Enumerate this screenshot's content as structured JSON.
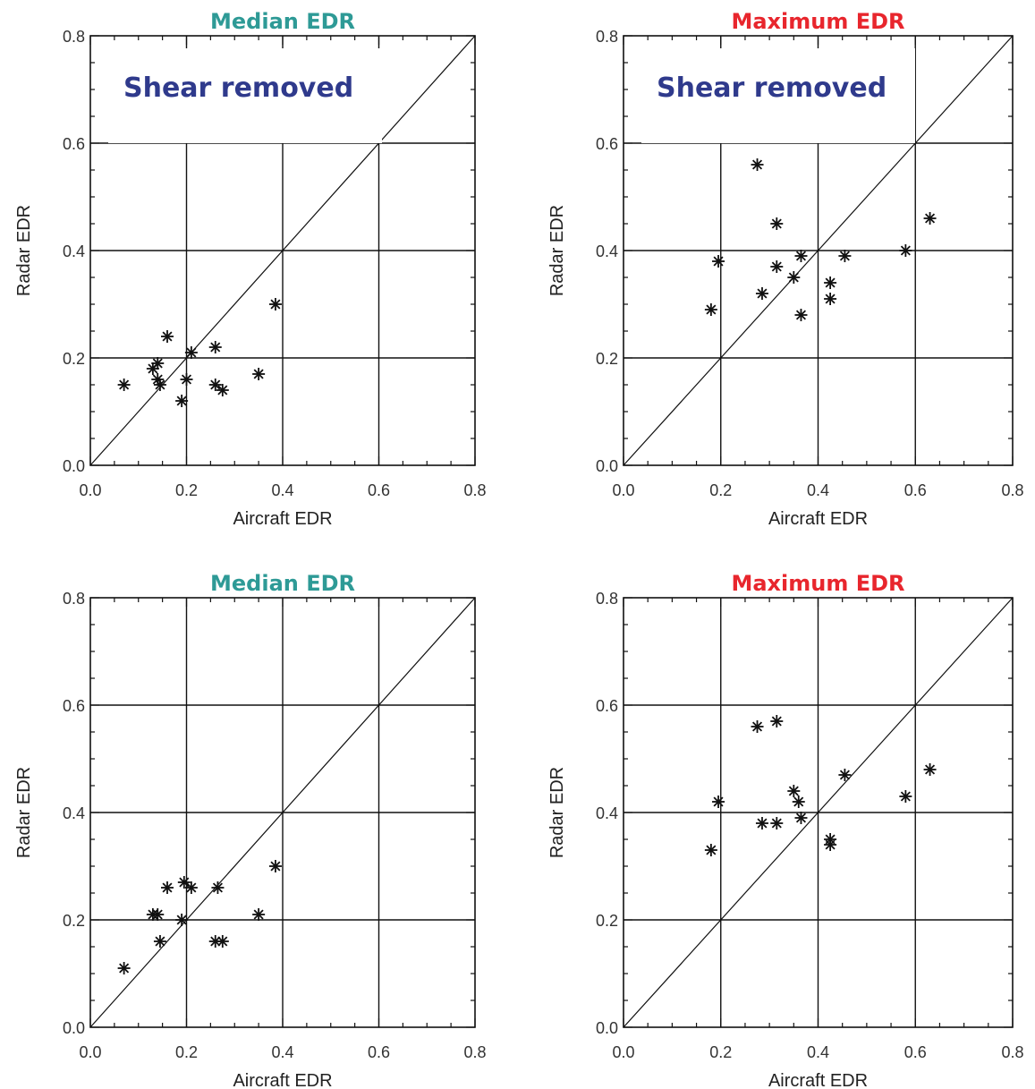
{
  "colors": {
    "median_title": "#2e9a96",
    "maximum_title": "#e8262d",
    "annotation": "#2f3a8c",
    "ink": "#111111"
  },
  "chart_data": [
    {
      "type": "scatter",
      "title": "Median EDR",
      "title_color": "median_title",
      "annotation": "Shear removed",
      "xlabel": "Aircraft EDR",
      "ylabel": "Radar EDR",
      "xlim": [
        0.0,
        0.8
      ],
      "ylim": [
        0.0,
        0.8
      ],
      "xticks": [
        "0.0",
        "0.2",
        "0.4",
        "0.6",
        "0.8"
      ],
      "yticks": [
        "0.0",
        "0.2",
        "0.4",
        "0.6",
        "0.8"
      ],
      "grid": true,
      "reference_line": "y = x",
      "marker": "asterisk",
      "points": [
        {
          "x": 0.07,
          "y": 0.15
        },
        {
          "x": 0.13,
          "y": 0.18
        },
        {
          "x": 0.14,
          "y": 0.19
        },
        {
          "x": 0.14,
          "y": 0.16
        },
        {
          "x": 0.145,
          "y": 0.15
        },
        {
          "x": 0.16,
          "y": 0.24
        },
        {
          "x": 0.19,
          "y": 0.12
        },
        {
          "x": 0.2,
          "y": 0.16
        },
        {
          "x": 0.21,
          "y": 0.21
        },
        {
          "x": 0.26,
          "y": 0.22
        },
        {
          "x": 0.26,
          "y": 0.15
        },
        {
          "x": 0.275,
          "y": 0.14
        },
        {
          "x": 0.35,
          "y": 0.17
        },
        {
          "x": 0.385,
          "y": 0.3
        }
      ]
    },
    {
      "type": "scatter",
      "title": "Maximum EDR",
      "title_color": "maximum_title",
      "annotation": "Shear removed",
      "xlabel": "Aircraft EDR",
      "ylabel": "Radar EDR",
      "xlim": [
        0.0,
        0.8
      ],
      "ylim": [
        0.0,
        0.8
      ],
      "xticks": [
        "0.0",
        "0.2",
        "0.4",
        "0.6",
        "0.8"
      ],
      "yticks": [
        "0.0",
        "0.2",
        "0.4",
        "0.6",
        "0.8"
      ],
      "grid": true,
      "reference_line": "y = x",
      "marker": "asterisk",
      "points": [
        {
          "x": 0.18,
          "y": 0.29
        },
        {
          "x": 0.195,
          "y": 0.38
        },
        {
          "x": 0.275,
          "y": 0.56
        },
        {
          "x": 0.285,
          "y": 0.32
        },
        {
          "x": 0.315,
          "y": 0.45
        },
        {
          "x": 0.315,
          "y": 0.37
        },
        {
          "x": 0.35,
          "y": 0.35
        },
        {
          "x": 0.365,
          "y": 0.39
        },
        {
          "x": 0.365,
          "y": 0.28
        },
        {
          "x": 0.425,
          "y": 0.34
        },
        {
          "x": 0.425,
          "y": 0.31
        },
        {
          "x": 0.455,
          "y": 0.39
        },
        {
          "x": 0.58,
          "y": 0.4
        },
        {
          "x": 0.63,
          "y": 0.46
        }
      ]
    },
    {
      "type": "scatter",
      "title": "Median EDR",
      "title_color": "median_title",
      "annotation": "",
      "xlabel": "Aircraft EDR",
      "ylabel": "Radar EDR",
      "xlim": [
        0.0,
        0.8
      ],
      "ylim": [
        0.0,
        0.8
      ],
      "xticks": [
        "0.0",
        "0.2",
        "0.4",
        "0.6",
        "0.8"
      ],
      "yticks": [
        "0.0",
        "0.2",
        "0.4",
        "0.6",
        "0.8"
      ],
      "grid": true,
      "reference_line": "y = x",
      "marker": "asterisk",
      "points": [
        {
          "x": 0.07,
          "y": 0.11
        },
        {
          "x": 0.13,
          "y": 0.21
        },
        {
          "x": 0.14,
          "y": 0.21
        },
        {
          "x": 0.145,
          "y": 0.16
        },
        {
          "x": 0.16,
          "y": 0.26
        },
        {
          "x": 0.19,
          "y": 0.2
        },
        {
          "x": 0.195,
          "y": 0.27
        },
        {
          "x": 0.21,
          "y": 0.26
        },
        {
          "x": 0.26,
          "y": 0.16
        },
        {
          "x": 0.265,
          "y": 0.26
        },
        {
          "x": 0.275,
          "y": 0.16
        },
        {
          "x": 0.35,
          "y": 0.21
        },
        {
          "x": 0.385,
          "y": 0.3
        }
      ]
    },
    {
      "type": "scatter",
      "title": "Maximum EDR",
      "title_color": "maximum_title",
      "annotation": "",
      "xlabel": "Aircraft EDR",
      "ylabel": "Radar EDR",
      "xlim": [
        0.0,
        0.8
      ],
      "ylim": [
        0.0,
        0.8
      ],
      "xticks": [
        "0.0",
        "0.2",
        "0.4",
        "0.6",
        "0.8"
      ],
      "yticks": [
        "0.0",
        "0.2",
        "0.4",
        "0.6",
        "0.8"
      ],
      "grid": true,
      "reference_line": "y = x",
      "marker": "asterisk",
      "points": [
        {
          "x": 0.18,
          "y": 0.33
        },
        {
          "x": 0.195,
          "y": 0.42
        },
        {
          "x": 0.275,
          "y": 0.56
        },
        {
          "x": 0.285,
          "y": 0.38
        },
        {
          "x": 0.315,
          "y": 0.57
        },
        {
          "x": 0.315,
          "y": 0.38
        },
        {
          "x": 0.35,
          "y": 0.44
        },
        {
          "x": 0.36,
          "y": 0.42
        },
        {
          "x": 0.365,
          "y": 0.39
        },
        {
          "x": 0.425,
          "y": 0.35
        },
        {
          "x": 0.425,
          "y": 0.34
        },
        {
          "x": 0.455,
          "y": 0.47
        },
        {
          "x": 0.58,
          "y": 0.43
        },
        {
          "x": 0.63,
          "y": 0.48
        }
      ]
    }
  ]
}
